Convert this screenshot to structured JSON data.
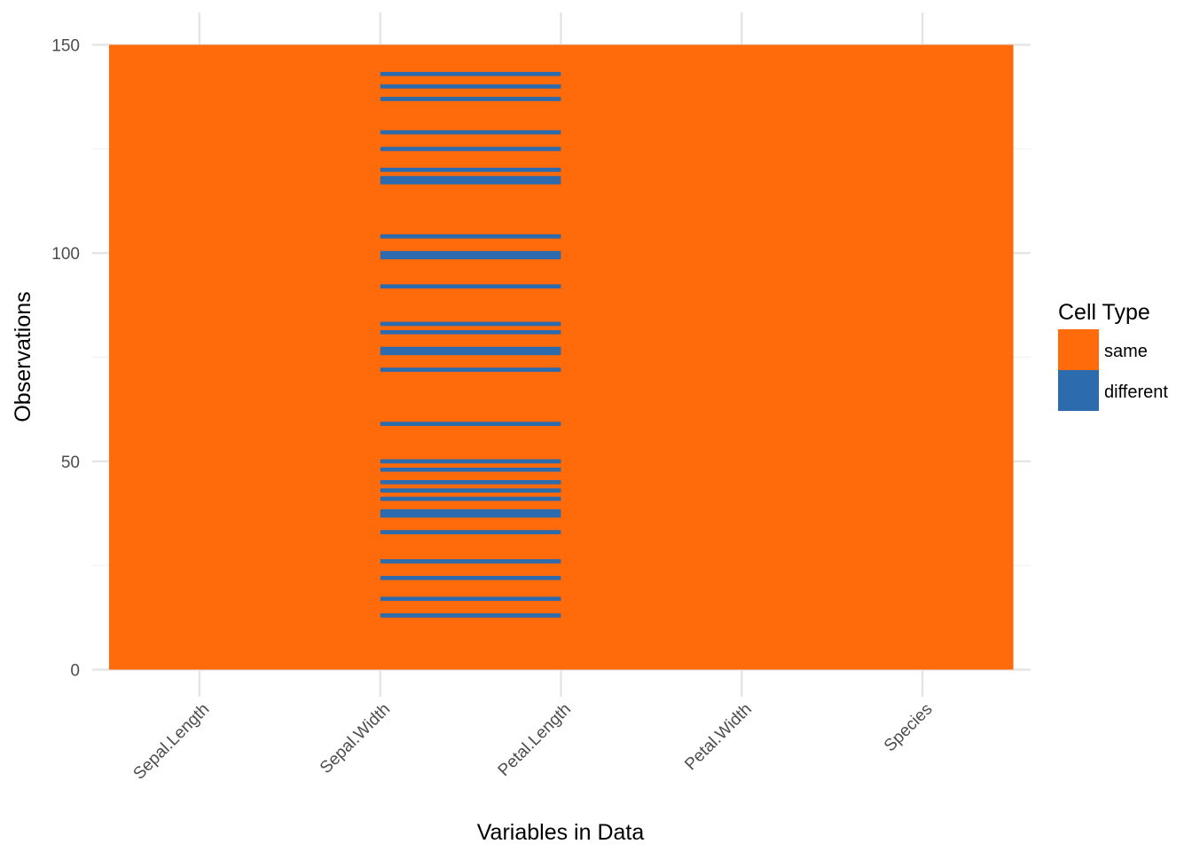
{
  "chart_data": {
    "type": "heatmap",
    "xlabel": "Variables in Data",
    "ylabel": "Observations",
    "ylim": [
      0,
      150
    ],
    "y_ticks": [
      0,
      50,
      100,
      150
    ],
    "categories": [
      "Sepal.Length",
      "Sepal.Width",
      "Petal.Length",
      "Petal.Width",
      "Species"
    ],
    "n_observations": 150,
    "legend": {
      "title": "Cell Type",
      "placement": "right",
      "entries": [
        {
          "label": "same",
          "color": "#FF6A0A"
        },
        {
          "label": "different",
          "color": "#2C6BAE"
        }
      ]
    },
    "different_cells": {
      "variables": [
        "Sepal.Width",
        "Petal.Length"
      ],
      "observations": [
        13,
        17,
        22,
        26,
        33,
        37,
        38,
        41,
        43,
        45,
        48,
        50,
        59,
        72,
        76,
        77,
        81,
        83,
        92,
        99,
        100,
        104,
        117,
        118,
        120,
        125,
        129,
        137,
        140,
        143
      ]
    },
    "grid": true
  }
}
